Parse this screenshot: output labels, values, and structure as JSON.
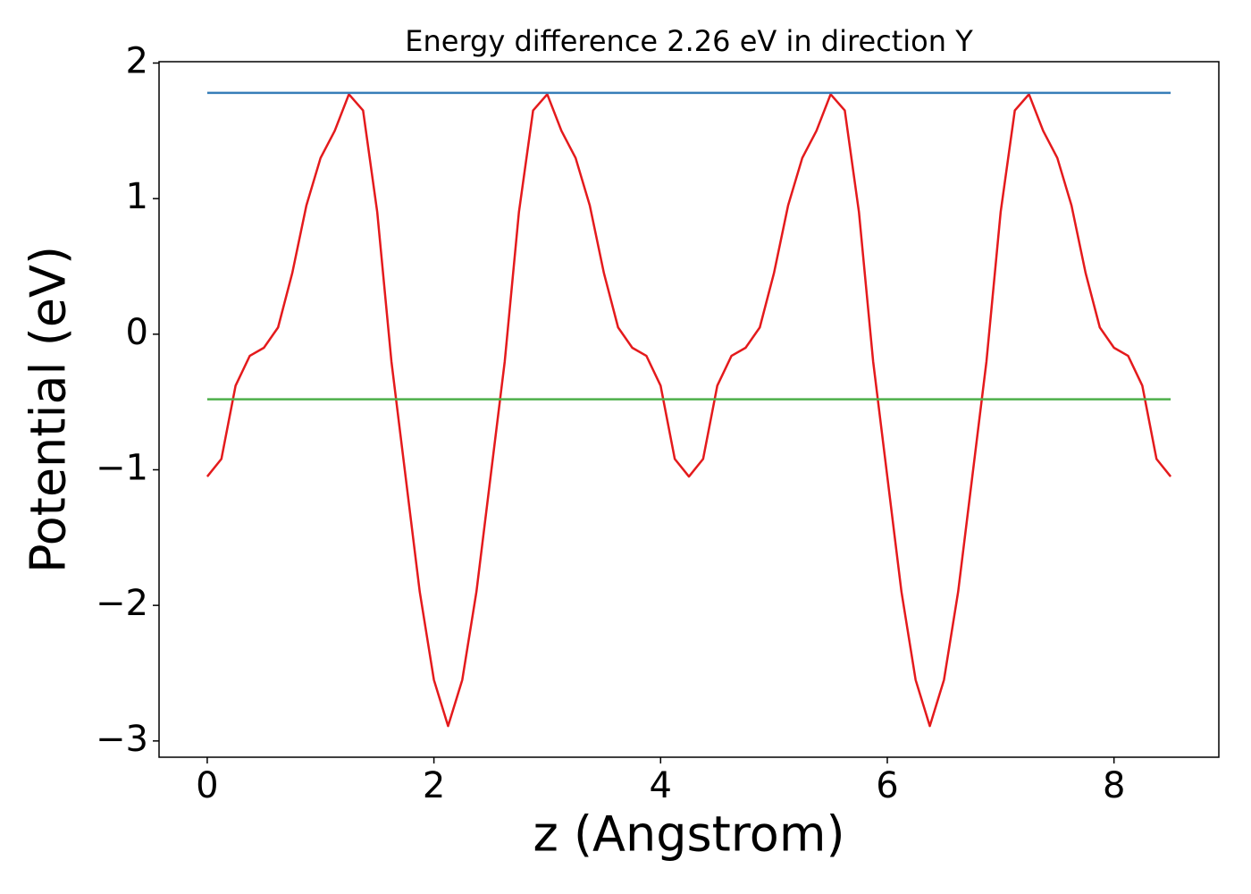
{
  "chart_data": {
    "type": "line",
    "title": "Energy difference 2.26 eV in direction Y",
    "xlabel": "z (Angstrom)",
    "ylabel": "Potential (eV)",
    "xlim": [
      -0.425,
      8.925
    ],
    "ylim": [
      -3.12,
      2.01
    ],
    "xticks": [
      0,
      2,
      4,
      6,
      8
    ],
    "yticks": [
      {
        "value": -3,
        "label": "−3"
      },
      {
        "value": -2,
        "label": "−2"
      },
      {
        "value": -1,
        "label": "−1"
      },
      0,
      1,
      2
    ],
    "grid": false,
    "series": [
      {
        "color": "#e41a1c",
        "x": [
          0,
          0.125,
          0.25,
          0.375,
          0.5,
          0.625,
          0.75,
          0.875,
          1,
          1.125,
          1.25,
          1.375,
          1.5,
          1.625,
          1.75,
          1.875,
          2,
          2.125,
          2.25,
          2.375,
          2.5,
          2.625,
          2.75,
          2.875,
          3,
          3.125,
          3.25,
          3.375,
          3.5,
          3.625,
          3.75,
          3.875,
          4,
          4.125,
          4.25,
          4.375,
          4.5,
          4.625,
          4.75,
          4.875,
          5,
          5.125,
          5.25,
          5.375,
          5.5,
          5.625,
          5.75,
          5.875,
          6,
          6.125,
          6.25,
          6.375,
          6.5,
          6.625,
          6.75,
          6.875,
          7,
          7.125,
          7.25,
          7.375,
          7.5,
          7.625,
          7.75,
          7.875,
          8,
          8.125,
          8.25,
          8.375,
          8.5
        ],
        "values": [
          -1.05,
          -0.92,
          -0.38,
          -0.16,
          -0.1,
          0.05,
          0.45,
          0.95,
          1.3,
          1.5,
          1.77,
          1.65,
          0.9,
          -0.2,
          -1.05,
          -1.9,
          -2.55,
          -2.89,
          -2.55,
          -1.9,
          -1.05,
          -0.2,
          0.9,
          1.65,
          1.77,
          1.5,
          1.3,
          0.95,
          0.45,
          0.05,
          -0.1,
          -0.16,
          -0.38,
          -0.92,
          -1.05,
          -0.92,
          -0.38,
          -0.16,
          -0.1,
          0.05,
          0.45,
          0.95,
          1.3,
          1.5,
          1.77,
          1.65,
          0.9,
          -0.2,
          -1.05,
          -1.9,
          -2.55,
          -2.89,
          -2.55,
          -1.9,
          -1.05,
          -0.2,
          0.9,
          1.65,
          1.77,
          1.5,
          1.3,
          0.95,
          0.45,
          0.05,
          -0.1,
          -0.16,
          -0.38,
          -0.92,
          -1.05
        ]
      },
      {
        "color": "#377eb8",
        "x": [
          0,
          8.5
        ],
        "values": [
          1.78,
          1.78
        ]
      },
      {
        "color": "#4daf4a",
        "x": [
          0,
          8.5
        ],
        "values": [
          -0.48,
          -0.48
        ]
      }
    ]
  }
}
